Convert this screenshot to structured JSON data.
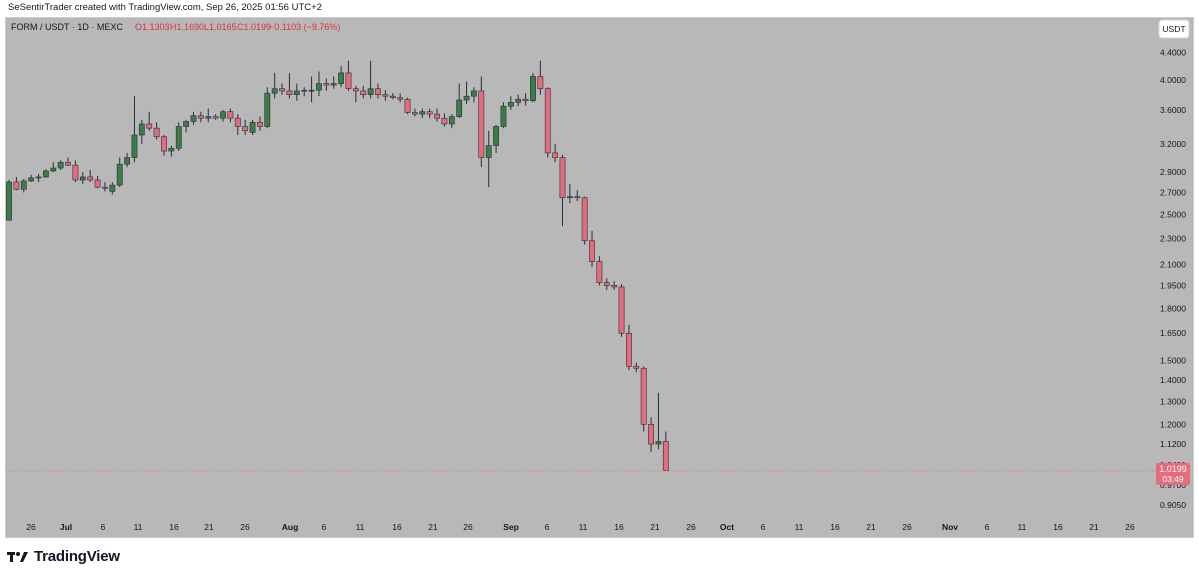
{
  "header": {
    "credit": "SeSentirTrader created with TradingView.com, Sep 26, 2025 01:56 UTC+2"
  },
  "legend": {
    "symbol": "FORM / USDT · 1D · MEXC",
    "open": "O1.1303",
    "high": "H1.1690",
    "low": "L1.0165",
    "close": "C1.0199",
    "change": "−0.1103 (−9.76%)"
  },
  "currency_button": "USDT",
  "price_tag": {
    "price": "1.0199",
    "countdown": "03:49"
  },
  "footer": {
    "brand": "TradingView"
  },
  "colors": {
    "up": "#3b7d45",
    "down": "#e46c7d",
    "background": "#b8b8b8",
    "legend_red": "#e0303f"
  },
  "chart_data": {
    "type": "candlestick",
    "scale": "log",
    "ylim": [
      0.87,
      4.6
    ],
    "y_ticks": [
      "4.4000",
      "4.0000",
      "3.6000",
      "3.2000",
      "2.9000",
      "2.7000",
      "2.5000",
      "2.3000",
      "2.1000",
      "1.9500",
      "1.8000",
      "1.6500",
      "1.5000",
      "1.4000",
      "1.3000",
      "1.2000",
      "1.1200",
      "1.0400",
      "0.9700",
      "0.9050"
    ],
    "x_ticks": [
      "26",
      "Jul",
      "6",
      "11",
      "16",
      "21",
      "26",
      "Aug",
      "6",
      "11",
      "16",
      "21",
      "26",
      "Sep",
      "6",
      "11",
      "16",
      "21",
      "26",
      "Oct",
      "6",
      "11",
      "16",
      "21",
      "26",
      "Nov",
      "6",
      "11",
      "16",
      "21",
      "26"
    ],
    "bold_x_ticks": [
      "Jul",
      "Aug",
      "Sep",
      "Oct",
      "Nov"
    ],
    "candles": [
      [
        2.45,
        2.82,
        2.45,
        2.8
      ],
      [
        2.8,
        2.85,
        2.72,
        2.73
      ],
      [
        2.73,
        2.83,
        2.7,
        2.81
      ],
      [
        2.81,
        2.87,
        2.8,
        2.84
      ],
      [
        2.84,
        2.88,
        2.8,
        2.85
      ],
      [
        2.85,
        2.93,
        2.84,
        2.91
      ],
      [
        2.91,
        3.0,
        2.9,
        2.94
      ],
      [
        2.94,
        3.02,
        2.92,
        3.0
      ],
      [
        3.0,
        3.05,
        2.96,
        2.97
      ],
      [
        2.97,
        3.02,
        2.8,
        2.82
      ],
      [
        2.82,
        2.9,
        2.78,
        2.85
      ],
      [
        2.85,
        2.92,
        2.8,
        2.82
      ],
      [
        2.82,
        2.86,
        2.74,
        2.75
      ],
      [
        2.75,
        2.8,
        2.71,
        2.74
      ],
      [
        2.71,
        2.8,
        2.68,
        2.77
      ],
      [
        2.77,
        3.05,
        2.75,
        2.98
      ],
      [
        2.98,
        3.1,
        2.95,
        3.05
      ],
      [
        3.05,
        3.78,
        3.0,
        3.3
      ],
      [
        3.3,
        3.48,
        3.2,
        3.43
      ],
      [
        3.43,
        3.58,
        3.35,
        3.38
      ],
      [
        3.38,
        3.45,
        3.25,
        3.28
      ],
      [
        3.28,
        3.3,
        3.07,
        3.12
      ],
      [
        3.12,
        3.18,
        3.06,
        3.15
      ],
      [
        3.15,
        3.45,
        3.12,
        3.4
      ],
      [
        3.4,
        3.48,
        3.33,
        3.46
      ],
      [
        3.46,
        3.58,
        3.42,
        3.53
      ],
      [
        3.53,
        3.58,
        3.45,
        3.5
      ],
      [
        3.5,
        3.62,
        3.45,
        3.52
      ],
      [
        3.52,
        3.55,
        3.48,
        3.5
      ],
      [
        3.5,
        3.6,
        3.46,
        3.58
      ],
      [
        3.58,
        3.62,
        3.45,
        3.5
      ],
      [
        3.5,
        3.55,
        3.3,
        3.4
      ],
      [
        3.4,
        3.48,
        3.3,
        3.35
      ],
      [
        3.33,
        3.48,
        3.3,
        3.45
      ],
      [
        3.45,
        3.52,
        3.35,
        3.4
      ],
      [
        3.4,
        3.9,
        3.38,
        3.82
      ],
      [
        3.82,
        4.1,
        3.75,
        3.88
      ],
      [
        3.88,
        3.95,
        3.8,
        3.85
      ],
      [
        3.85,
        4.1,
        3.75,
        3.8
      ],
      [
        3.8,
        3.95,
        3.72,
        3.85
      ],
      [
        3.85,
        3.9,
        3.78,
        3.86
      ],
      [
        3.86,
        4.05,
        3.7,
        3.86
      ],
      [
        3.86,
        4.12,
        3.78,
        3.95
      ],
      [
        3.95,
        4.02,
        3.85,
        3.93
      ],
      [
        3.93,
        4.05,
        3.88,
        3.95
      ],
      [
        3.95,
        4.2,
        3.9,
        4.1
      ],
      [
        4.1,
        4.28,
        3.85,
        3.88
      ],
      [
        3.88,
        3.92,
        3.7,
        3.85
      ],
      [
        3.85,
        3.92,
        3.75,
        3.8
      ],
      [
        3.8,
        4.28,
        3.75,
        3.88
      ],
      [
        3.88,
        3.95,
        3.75,
        3.8
      ],
      [
        3.8,
        3.86,
        3.72,
        3.78
      ],
      [
        3.78,
        3.82,
        3.74,
        3.76
      ],
      [
        3.76,
        3.82,
        3.7,
        3.74
      ],
      [
        3.74,
        3.76,
        3.55,
        3.57
      ],
      [
        3.57,
        3.62,
        3.52,
        3.55
      ],
      [
        3.55,
        3.62,
        3.5,
        3.58
      ],
      [
        3.58,
        3.62,
        3.5,
        3.55
      ],
      [
        3.55,
        3.62,
        3.46,
        3.5
      ],
      [
        3.5,
        3.56,
        3.4,
        3.43
      ],
      [
        3.43,
        3.55,
        3.38,
        3.52
      ],
      [
        3.52,
        3.95,
        3.5,
        3.73
      ],
      [
        3.73,
        3.98,
        3.68,
        3.78
      ],
      [
        3.78,
        3.9,
        3.7,
        3.85
      ],
      [
        3.85,
        4.05,
        2.95,
        3.05
      ],
      [
        3.05,
        3.35,
        2.75,
        3.18
      ],
      [
        3.18,
        3.42,
        3.1,
        3.4
      ],
      [
        3.4,
        3.7,
        3.38,
        3.65
      ],
      [
        3.65,
        3.78,
        3.6,
        3.7
      ],
      [
        3.7,
        3.8,
        3.65,
        3.74
      ],
      [
        3.74,
        3.82,
        3.66,
        3.72
      ],
      [
        3.72,
        4.1,
        3.7,
        4.05
      ],
      [
        4.05,
        4.28,
        3.8,
        3.88
      ],
      [
        3.88,
        3.9,
        3.05,
        3.1
      ],
      [
        3.1,
        3.2,
        3.0,
        3.05
      ],
      [
        3.05,
        3.08,
        2.4,
        2.65
      ],
      [
        2.65,
        2.78,
        2.6,
        2.66
      ],
      [
        2.66,
        2.72,
        2.62,
        2.65
      ],
      [
        2.65,
        2.66,
        2.25,
        2.28
      ],
      [
        2.28,
        2.36,
        2.08,
        2.12
      ],
      [
        2.12,
        2.16,
        1.95,
        1.97
      ],
      [
        1.97,
        2.0,
        1.92,
        1.95
      ],
      [
        1.95,
        1.98,
        1.92,
        1.94
      ],
      [
        1.94,
        1.96,
        1.63,
        1.65
      ],
      [
        1.65,
        1.7,
        1.45,
        1.47
      ],
      [
        1.47,
        1.49,
        1.44,
        1.46
      ],
      [
        1.46,
        1.47,
        1.17,
        1.2
      ],
      [
        1.2,
        1.23,
        1.09,
        1.12
      ],
      [
        1.12,
        1.34,
        1.1,
        1.13
      ],
      [
        1.13,
        1.17,
        1.02,
        1.02
      ]
    ],
    "last_price": 1.0199
  }
}
